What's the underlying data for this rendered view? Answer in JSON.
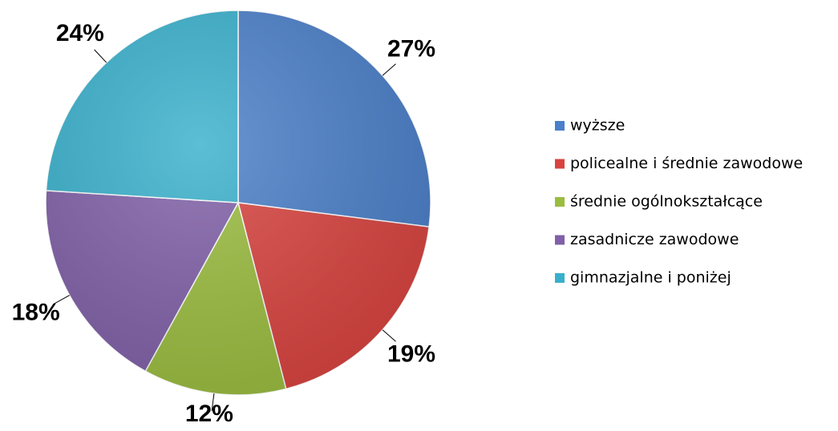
{
  "chart_data": {
    "type": "pie",
    "categories": [
      "wyższe",
      "policealne i średnie zawodowe",
      "średnie ogólnokształcące",
      "zasadnicze zawodowe",
      "gimnazjalne i poniżej"
    ],
    "values": [
      27,
      19,
      12,
      18,
      24
    ],
    "value_labels": [
      "27%",
      "19%",
      "12%",
      "18%",
      "24%"
    ],
    "colors": [
      "#4a7fc9",
      "#d9433f",
      "#9bbd3f",
      "#8060a8",
      "#38b0cc"
    ],
    "legend": "right"
  }
}
